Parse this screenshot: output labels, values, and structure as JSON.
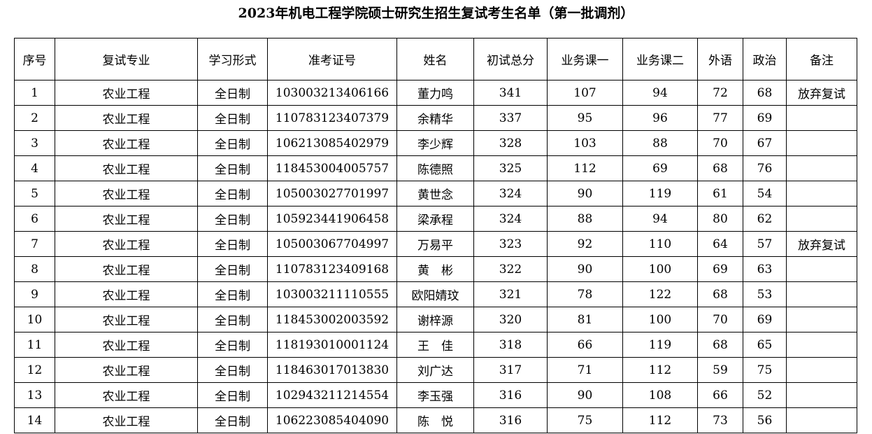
{
  "title": "2023年机电工程学院硕士研究生招生复试考生名单（第一批调剂）",
  "headers": [
    "序号",
    "复试专业",
    "学习形式",
    "准考证号",
    "姓名",
    "初试总分",
    "业务课一",
    "业务课二",
    "外语",
    "政治",
    "备注"
  ],
  "rows": [
    [
      "1",
      "农业工程",
      "全日制",
      "103003213406166",
      "董力鸣",
      "341",
      "107",
      "94",
      "72",
      "68",
      "放弃复试"
    ],
    [
      "2",
      "农业工程",
      "全日制",
      "110783123407379",
      "余精华",
      "337",
      "95",
      "96",
      "77",
      "69",
      ""
    ],
    [
      "3",
      "农业工程",
      "全日制",
      "106213085402979",
      "李少辉",
      "328",
      "103",
      "88",
      "70",
      "67",
      ""
    ],
    [
      "4",
      "农业工程",
      "全日制",
      "118453004005757",
      "陈德照",
      "325",
      "112",
      "69",
      "68",
      "76",
      ""
    ],
    [
      "5",
      "农业工程",
      "全日制",
      "105003027701997",
      "黄世念",
      "324",
      "90",
      "119",
      "61",
      "54",
      ""
    ],
    [
      "6",
      "农业工程",
      "全日制",
      "105923441906458",
      "梁承程",
      "324",
      "88",
      "94",
      "80",
      "62",
      ""
    ],
    [
      "7",
      "农业工程",
      "全日制",
      "105003067704997",
      "万易平",
      "323",
      "92",
      "110",
      "64",
      "57",
      "放弃复试"
    ],
    [
      "8",
      "农业工程",
      "全日制",
      "110783123409168",
      "黄　彬",
      "322",
      "90",
      "100",
      "69",
      "63",
      ""
    ],
    [
      "9",
      "农业工程",
      "全日制",
      "103003211110555",
      "欧阳婧玟",
      "321",
      "78",
      "122",
      "68",
      "53",
      ""
    ],
    [
      "10",
      "农业工程",
      "全日制",
      "118453002003592",
      "谢梓源",
      "320",
      "81",
      "100",
      "70",
      "69",
      ""
    ],
    [
      "11",
      "农业工程",
      "全日制",
      "118193010001124",
      "王　佳",
      "318",
      "66",
      "119",
      "68",
      "65",
      ""
    ],
    [
      "12",
      "农业工程",
      "全日制",
      "118463017013830",
      "刘广达",
      "317",
      "71",
      "112",
      "59",
      "75",
      ""
    ],
    [
      "13",
      "农业工程",
      "全日制",
      "102943211214554",
      "李玉强",
      "316",
      "90",
      "108",
      "66",
      "52",
      ""
    ],
    [
      "14",
      "农业工程",
      "全日制",
      "106223085404090",
      "陈　悦",
      "316",
      "75",
      "112",
      "73",
      "56",
      ""
    ]
  ]
}
